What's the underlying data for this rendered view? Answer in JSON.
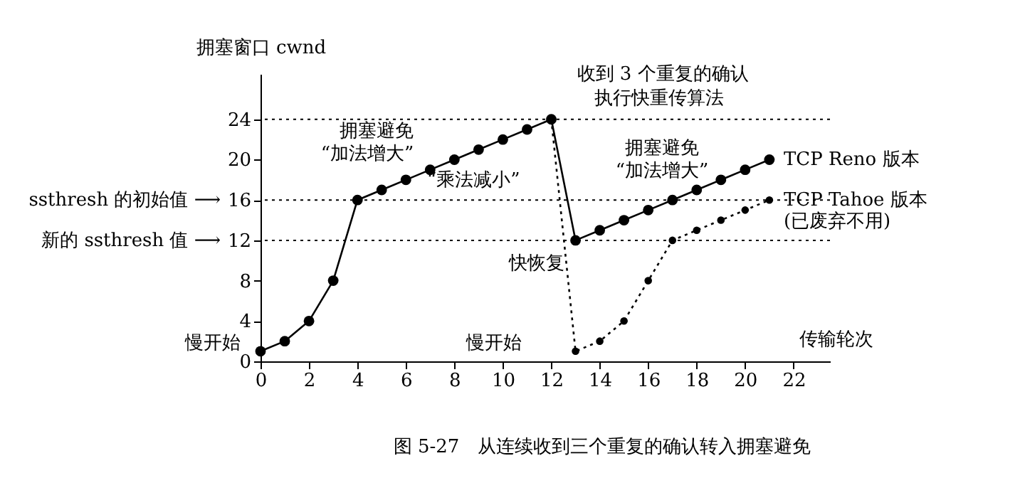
{
  "chart_data": {
    "type": "line",
    "title": "图 5-27　从连续收到三个重复的确认转入拥塞避免",
    "xlabel": "传输轮次",
    "ylabel": "拥塞窗口 cwnd",
    "xlim": [
      0,
      23.5
    ],
    "ylim": [
      0,
      28.5
    ],
    "xticks": [
      0,
      2,
      4,
      6,
      8,
      10,
      12,
      14,
      16,
      18,
      20,
      22
    ],
    "yticks": [
      0,
      4,
      8,
      12,
      16,
      20,
      24
    ],
    "grid": false,
    "marker": "circle",
    "series": [
      {
        "name": "TCP Reno 版本",
        "color": "#000000",
        "line_style": "solid",
        "x": [
          0,
          1,
          2,
          3,
          4,
          5,
          6,
          7,
          8,
          9,
          10,
          11,
          12,
          13,
          14,
          15,
          16,
          17,
          18,
          19,
          20,
          21
        ],
        "values": [
          1,
          2,
          4,
          8,
          16,
          17,
          18,
          19,
          20,
          21,
          22,
          23,
          24,
          12,
          13,
          14,
          15,
          16,
          17,
          18,
          19,
          20
        ]
      },
      {
        "name": "TCP Tahoe 版本\n(已废弃不用)",
        "color": "#000000",
        "line_style": "dotted",
        "x": [
          12,
          13,
          14,
          15,
          16,
          17,
          18,
          19,
          20,
          21
        ],
        "values": [
          24,
          1,
          2,
          4,
          8,
          12,
          13,
          14,
          15,
          16
        ]
      }
    ],
    "ref_lines": [
      {
        "axis": "y",
        "value": 24,
        "line_style": "dotted"
      },
      {
        "axis": "y",
        "value": 16,
        "label": "ssthresh 的初始值 ⟶",
        "line_style": "dotted"
      },
      {
        "axis": "y",
        "value": 12,
        "label": "新的 ssthresh 值 ⟶",
        "line_style": "dotted"
      }
    ],
    "annotations": [
      {
        "text": "慢开始",
        "x": 0,
        "y": 1
      },
      {
        "text": "拥塞避免",
        "x": 7.5,
        "y": 19.5
      },
      {
        "text": "“加法增大”",
        "x": 7.5,
        "y": 19.5
      },
      {
        "text": "收到 3 个重复的确认",
        "x": 12,
        "y": 24
      },
      {
        "text": "执行快重传算法",
        "x": 12,
        "y": 24
      },
      {
        "text": "“乘法减小”",
        "x": 12,
        "y": 18
      },
      {
        "text": "快恢复",
        "x": 13,
        "y": 12
      },
      {
        "text": "慢开始",
        "x": 13,
        "y": 1
      },
      "拥塞避免",
      "“加法增大”"
    ]
  }
}
